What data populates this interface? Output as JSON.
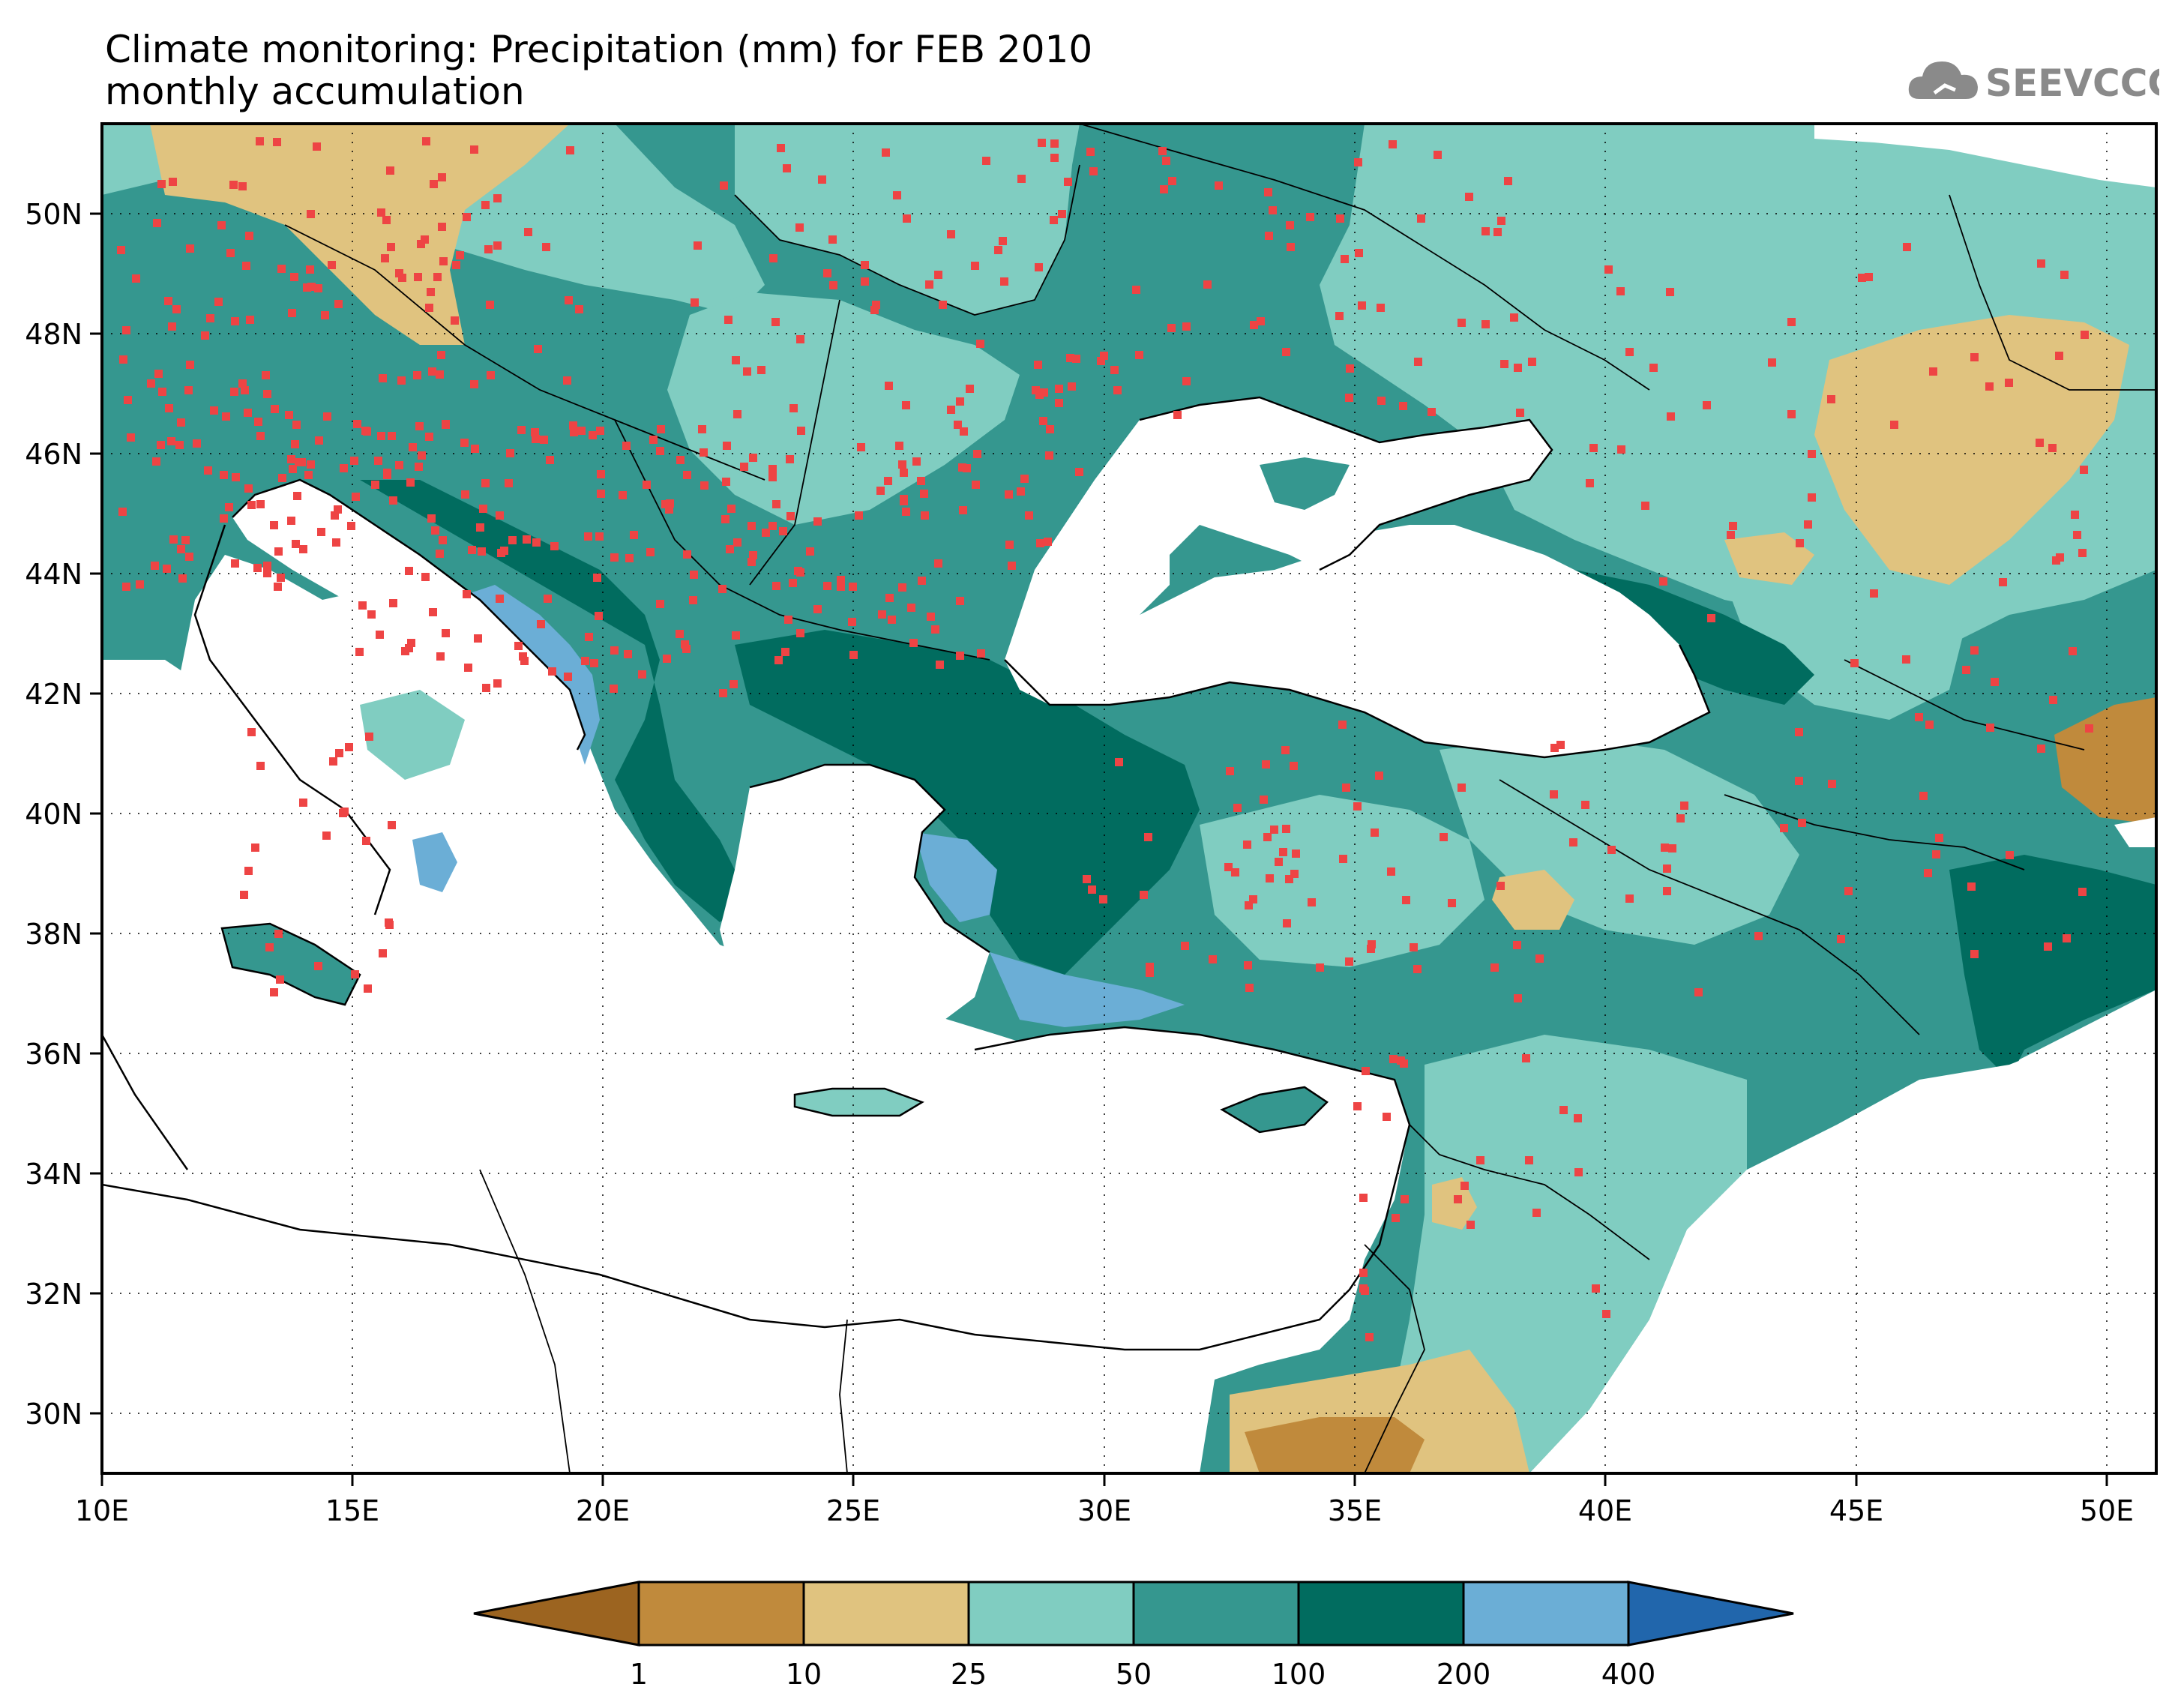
{
  "title_line1": "Climate monitoring: Precipitation (mm) for FEB 2010",
  "title_line2": "monthly accumulation",
  "logo_text": "SEEVCCC",
  "map": {
    "lon_range": [
      10,
      51
    ],
    "lat_range": [
      29,
      51.5
    ],
    "lon_ticks": [
      "10E",
      "15E",
      "20E",
      "25E",
      "30E",
      "35E",
      "40E",
      "45E",
      "50E"
    ],
    "lat_ticks": [
      "30N",
      "32N",
      "34N",
      "36N",
      "38N",
      "40N",
      "42N",
      "44N",
      "46N",
      "48N",
      "50N"
    ],
    "station_marker_color": "#ee4444",
    "grid_lines": "dotted"
  },
  "colorbar": {
    "labels": [
      "1",
      "10",
      "25",
      "50",
      "100",
      "200",
      "400"
    ],
    "colors": [
      "#9c6420",
      "#c08a3c",
      "#e0c37f",
      "#80cdc1",
      "#35978f",
      "#016c5f",
      "#6baed6",
      "#2166ac"
    ]
  }
}
